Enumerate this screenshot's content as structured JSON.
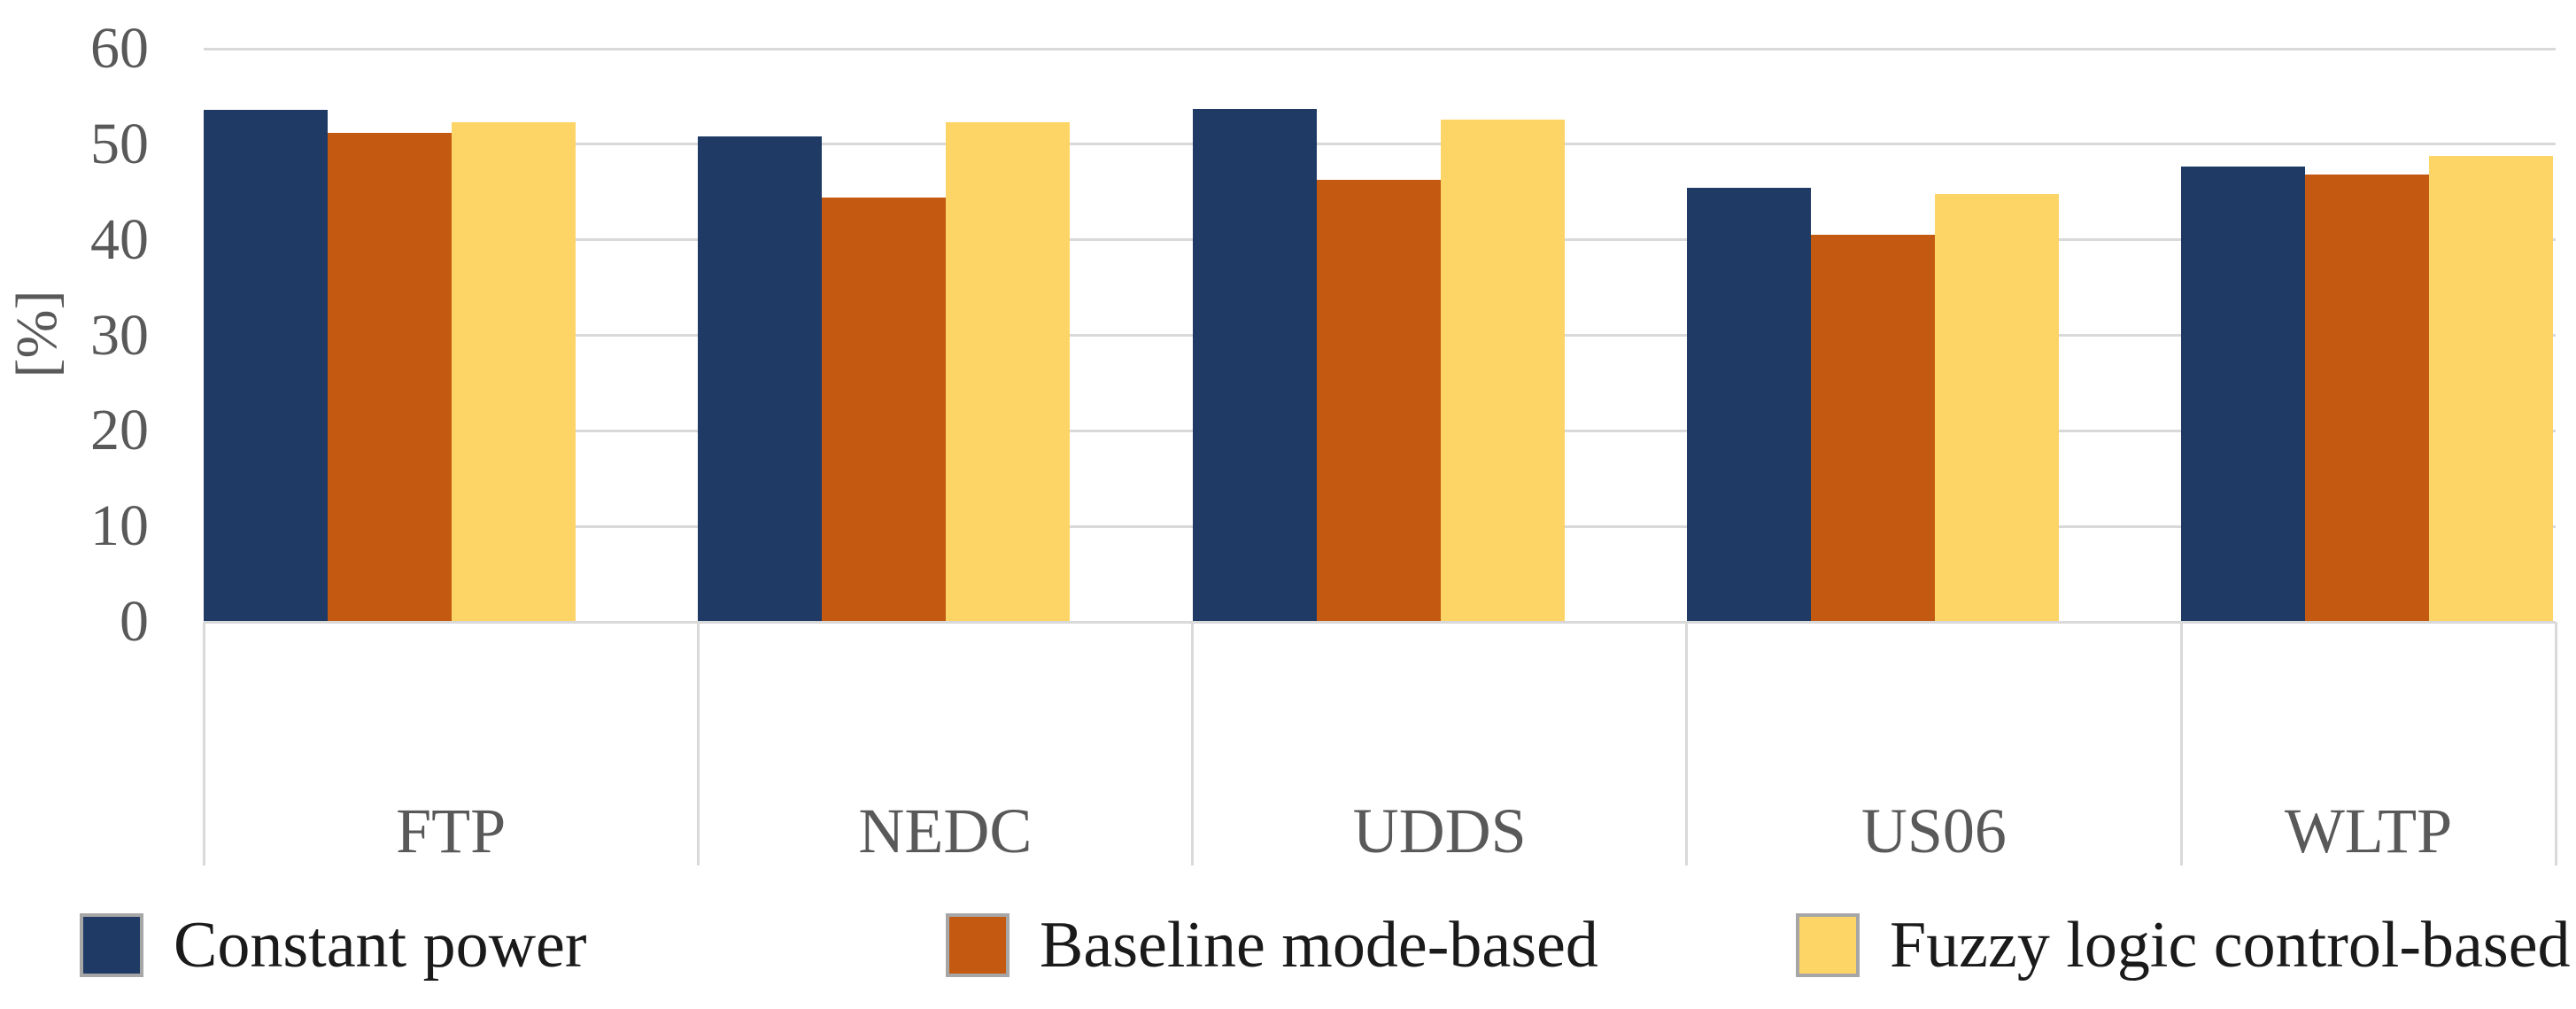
{
  "chart_data": {
    "type": "bar",
    "title": "",
    "ylabel": "[%]",
    "xlabel": "",
    "categories": [
      "FTP",
      "NEDC",
      "UDDS",
      "US06",
      "WLTP"
    ],
    "series": [
      {
        "name": "Constant power",
        "color": "#1F3A64",
        "values": [
          53.6,
          50.8,
          53.7,
          45.4,
          47.7
        ]
      },
      {
        "name": "Baseline mode-based",
        "color": "#C45A11",
        "values": [
          51.2,
          44.4,
          46.3,
          40.5,
          46.8
        ]
      },
      {
        "name": "Fuzzy logic control-based",
        "color": "#FDD566",
        "values": [
          52.3,
          52.3,
          52.6,
          44.8,
          48.8
        ]
      }
    ],
    "ylim": [
      0,
      60
    ],
    "yticks": [
      0,
      10,
      20,
      30,
      40,
      50,
      60
    ],
    "grid": true,
    "legend_position": "bottom",
    "gridline_color": "#D9D9D9",
    "axis_line_color": "#D9D9D9",
    "axis_text_color": "#595959",
    "legend_text_color": "#1a1a1a",
    "swatch_border_color": "#A6A6A6",
    "background_color": "#FFFFFF"
  }
}
